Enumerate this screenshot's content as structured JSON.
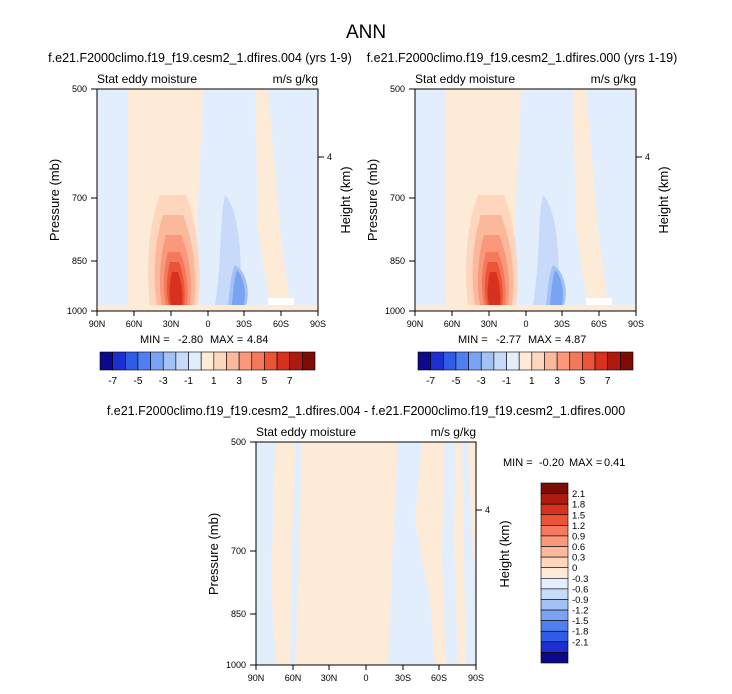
{
  "page_title": "ANN",
  "colors": {
    "blue_scale": [
      "#0a0a8a",
      "#1d2fd0",
      "#2f5ce6",
      "#4f7ff0",
      "#7aa3f3",
      "#a2c2f6",
      "#c7daf9",
      "#e3eefc"
    ],
    "red_scale": [
      "#fdebd8",
      "#fdd6bd",
      "#fcb89a",
      "#f9987a",
      "#f4785c",
      "#ec5438",
      "#d8321e",
      "#ad1b0e",
      "#7b0c06"
    ],
    "missing": "#ffffff"
  },
  "panels": [
    {
      "title": "f.e21.F2000climo.f19_f19.cesm2_1.dfires.004 (yrs 1-9)",
      "left_label": "Stat eddy moisture",
      "right_label": "m/s g/kg",
      "ylabel": "Pressure (mb)",
      "ylabel_right": "Height (km)",
      "stats": {
        "min_label": "MIN =",
        "min": "-2.80",
        "max_label": "MAX =",
        "max": "4.84"
      }
    },
    {
      "title": "f.e21.F2000climo.f19_f19.cesm2_1.dfires.000 (yrs 1-19)",
      "left_label": "Stat eddy moisture",
      "right_label": "m/s g/kg",
      "ylabel": "Pressure (mb)",
      "ylabel_right": "Height (km)",
      "stats": {
        "min_label": "MIN =",
        "min": "-2.77",
        "max_label": "MAX =",
        "max": "4.87"
      }
    },
    {
      "title": "f.e21.F2000climo.f19_f19.cesm2_1.dfires.004 - f.e21.F2000climo.f19_f19.cesm2_1.dfires.000",
      "left_label": "Stat eddy moisture",
      "right_label": "m/s g/kg",
      "ylabel": "Pressure (mb)",
      "ylabel_right": "Height (km)",
      "stats": {
        "min_label": "MIN =",
        "min": "-0.20",
        "max_label": "MAX =",
        "max": "0.41"
      }
    }
  ],
  "chart_data": [
    {
      "type": "heatmap",
      "title": "f.e21.F2000climo.f19_f19.cesm2_1.dfires.004 (yrs 1-9)",
      "xlabel": "",
      "ylabel": "Pressure (mb)",
      "y2label": "Height (km)",
      "x_ticks": [
        "90N",
        "60N",
        "30N",
        "0",
        "30S",
        "60S",
        "90S"
      ],
      "x_tick_values": [
        90,
        60,
        30,
        0,
        -30,
        -60,
        -90
      ],
      "y_ticks": [
        "500",
        "700",
        "850",
        "1000"
      ],
      "y_tick_values": [
        500,
        700,
        850,
        1000
      ],
      "y2_ticks": [
        "4"
      ],
      "xlim": [
        90,
        -90
      ],
      "ylim": [
        500,
        1000
      ],
      "levels": [
        -7,
        -6,
        -5,
        -4,
        -3,
        -2,
        -1,
        0,
        1,
        2,
        3,
        4,
        5,
        6,
        7
      ],
      "colorbar_labels": [
        "-7",
        "-5",
        "-3",
        "-1",
        "1",
        "3",
        "5",
        "7"
      ],
      "colorbar_orientation": "horizontal",
      "min": -2.8,
      "max": 4.84
    },
    {
      "type": "heatmap",
      "title": "f.e21.F2000climo.f19_f19.cesm2_1.dfires.000 (yrs 1-19)",
      "xlabel": "",
      "ylabel": "Pressure (mb)",
      "y2label": "Height (km)",
      "x_ticks": [
        "90N",
        "60N",
        "30N",
        "0",
        "30S",
        "60S",
        "90S"
      ],
      "x_tick_values": [
        90,
        60,
        30,
        0,
        -30,
        -60,
        -90
      ],
      "y_ticks": [
        "500",
        "700",
        "850",
        "1000"
      ],
      "y_tick_values": [
        500,
        700,
        850,
        1000
      ],
      "y2_ticks": [
        "4"
      ],
      "xlim": [
        90,
        -90
      ],
      "ylim": [
        500,
        1000
      ],
      "levels": [
        -7,
        -6,
        -5,
        -4,
        -3,
        -2,
        -1,
        0,
        1,
        2,
        3,
        4,
        5,
        6,
        7
      ],
      "colorbar_labels": [
        "-7",
        "-5",
        "-3",
        "-1",
        "1",
        "3",
        "5",
        "7"
      ],
      "colorbar_orientation": "horizontal",
      "min": -2.77,
      "max": 4.87
    },
    {
      "type": "heatmap",
      "title": "f.e21.F2000climo.f19_f19.cesm2_1.dfires.004 - f.e21.F2000climo.f19_f19.cesm2_1.dfires.000",
      "xlabel": "",
      "ylabel": "Pressure (mb)",
      "y2label": "Height (km)",
      "x_ticks": [
        "90N",
        "60N",
        "30N",
        "0",
        "30S",
        "60S",
        "90S"
      ],
      "x_tick_values": [
        90,
        60,
        30,
        0,
        -30,
        -60,
        -90
      ],
      "y_ticks": [
        "500",
        "700",
        "850",
        "1000"
      ],
      "y_tick_values": [
        500,
        700,
        850,
        1000
      ],
      "y2_ticks": [
        "4"
      ],
      "xlim": [
        90,
        -90
      ],
      "ylim": [
        500,
        1000
      ],
      "levels": [
        -2.1,
        -1.8,
        -1.5,
        -1.2,
        -0.9,
        -0.6,
        -0.3,
        0,
        0.3,
        0.6,
        0.9,
        1.2,
        1.5,
        1.8,
        2.1
      ],
      "colorbar_labels": [
        "2.1",
        "1.8",
        "1.5",
        "1.2",
        "0.9",
        "0.6",
        "0.3",
        "0",
        "-0.3",
        "-0.6",
        "-0.9",
        "-1.2",
        "-1.5",
        "-1.8",
        "-2.1"
      ],
      "colorbar_orientation": "vertical",
      "min": -0.2,
      "max": 0.41
    }
  ]
}
